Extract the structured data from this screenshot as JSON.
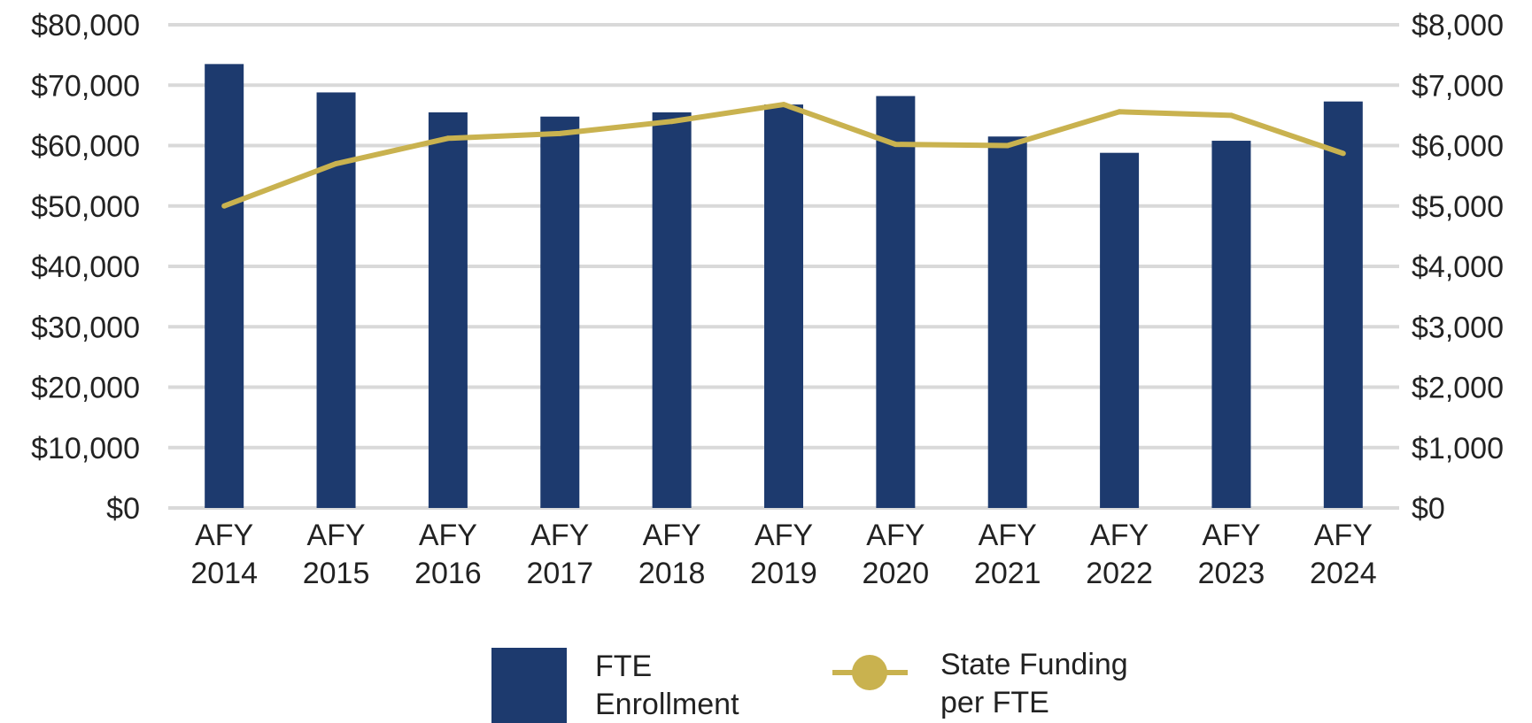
{
  "chart_data": {
    "type": "bar+line",
    "categories_line1": [
      "AFY",
      "AFY",
      "AFY",
      "AFY",
      "AFY",
      "AFY",
      "AFY",
      "AFY",
      "AFY",
      "AFY",
      "AFY"
    ],
    "categories_line2": [
      "2014",
      "2015",
      "2016",
      "2017",
      "2018",
      "2019",
      "2020",
      "2021",
      "2022",
      "2023",
      "2024"
    ],
    "left_axis": {
      "ylim": [
        0,
        80000
      ],
      "ticks": [
        0,
        10000,
        20000,
        30000,
        40000,
        50000,
        60000,
        70000,
        80000
      ],
      "tick_labels": [
        "$0",
        "$10,000",
        "$20,000",
        "$30,000",
        "$40,000",
        "$50,000",
        "$60,000",
        "$70,000",
        "$80,000"
      ]
    },
    "right_axis": {
      "ylim": [
        0,
        8000
      ],
      "ticks": [
        0,
        1000,
        2000,
        3000,
        4000,
        5000,
        6000,
        7000,
        8000
      ],
      "tick_labels": [
        "$0",
        "$1,000",
        "$2,000",
        "$3,000",
        "$4,000",
        "$5,000",
        "$6,000",
        "$7,000",
        "$8,000"
      ]
    },
    "series": [
      {
        "name": "FTE Enrollment",
        "type": "bar",
        "axis": "left",
        "color": "#1d3a6e",
        "values": [
          73500,
          68800,
          65500,
          64800,
          65500,
          66800,
          68200,
          61500,
          58800,
          60800,
          67300
        ]
      },
      {
        "name": "State Funding per FTE",
        "type": "line",
        "axis": "right",
        "color": "#c9b24f",
        "values": [
          5000,
          5700,
          6120,
          6200,
          6400,
          6680,
          6020,
          6000,
          6560,
          6500,
          5870
        ]
      }
    ],
    "grid": true,
    "legend": {
      "position": "bottom-center",
      "bar_label_line1": "FTE",
      "bar_label_line2": "Enrollment",
      "line_label_line1": "State Funding",
      "line_label_line2": "per FTE"
    }
  }
}
